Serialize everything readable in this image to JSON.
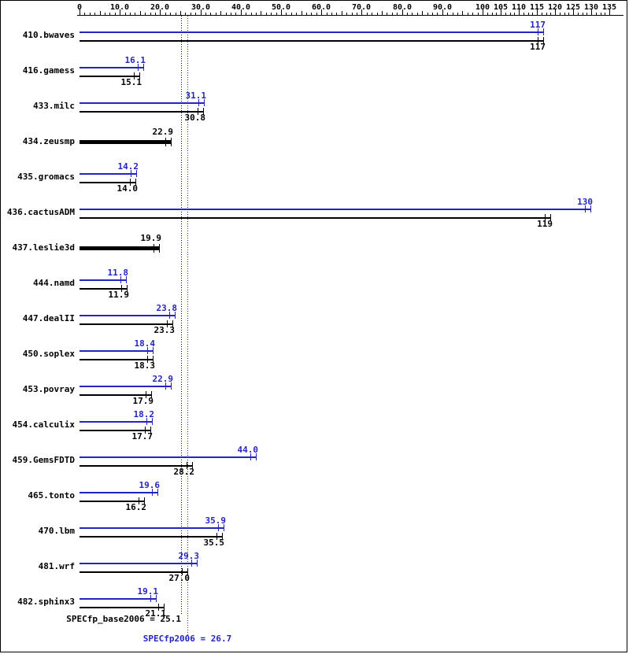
{
  "chart_data": {
    "type": "bar",
    "orientation": "horizontal",
    "axis": {
      "position": "top",
      "min": 0,
      "max": 135,
      "major_ticks": [
        {
          "v": 0,
          "label": "0"
        },
        {
          "v": 10,
          "label": "10.0"
        },
        {
          "v": 20,
          "label": "20.0"
        },
        {
          "v": 30,
          "label": "30.0"
        },
        {
          "v": 40,
          "label": "40.0"
        },
        {
          "v": 50,
          "label": "50.0"
        },
        {
          "v": 60,
          "label": "60.0"
        },
        {
          "v": 70,
          "label": "70.0"
        },
        {
          "v": 80,
          "label": "80.0"
        },
        {
          "v": 90,
          "label": "90.0"
        },
        {
          "v": 100,
          "label": "100"
        },
        {
          "v": 105,
          "label": "105"
        },
        {
          "v": 110,
          "label": "110"
        },
        {
          "v": 115,
          "label": "115"
        },
        {
          "v": 120,
          "label": "120"
        },
        {
          "v": 125,
          "label": "125"
        },
        {
          "v": 130,
          "label": "130"
        },
        {
          "v": 135,
          "label": "135"
        }
      ]
    },
    "series_names": {
      "peak": "SPECfp2006",
      "base": "SPECfp_base2006"
    },
    "colors": {
      "peak": "#2424c0",
      "base": "#000000"
    },
    "benchmarks": [
      {
        "name": "410.bwaves",
        "peak": 117,
        "peak_label": "117",
        "base": 117,
        "base_label": "117",
        "single": false
      },
      {
        "name": "416.gamess",
        "peak": 16.1,
        "peak_label": "16.1",
        "base": 15.1,
        "base_label": "15.1",
        "single": false
      },
      {
        "name": "433.milc",
        "peak": 31.1,
        "peak_label": "31.1",
        "base": 30.8,
        "base_label": "30.8",
        "single": false
      },
      {
        "name": "434.zeusmp",
        "base": 22.9,
        "base_label": "22.9",
        "single": true
      },
      {
        "name": "435.gromacs",
        "peak": 14.2,
        "peak_label": "14.2",
        "base": 14.0,
        "base_label": "14.0",
        "single": false
      },
      {
        "name": "436.cactusADM",
        "peak": 130,
        "peak_label": "130",
        "base": 119,
        "base_label": "119",
        "single": false
      },
      {
        "name": "437.leslie3d",
        "base": 19.9,
        "base_label": "19.9",
        "single": true
      },
      {
        "name": "444.namd",
        "peak": 11.8,
        "peak_label": "11.8",
        "base": 11.9,
        "base_label": "11.9",
        "single": false
      },
      {
        "name": "447.dealII",
        "peak": 23.8,
        "peak_label": "23.8",
        "base": 23.3,
        "base_label": "23.3",
        "single": false
      },
      {
        "name": "450.soplex",
        "peak": 18.4,
        "peak_label": "18.4",
        "base": 18.3,
        "base_label": "18.3",
        "single": false
      },
      {
        "name": "453.povray",
        "peak": 22.9,
        "peak_label": "22.9",
        "base": 17.9,
        "base_label": "17.9",
        "single": false
      },
      {
        "name": "454.calculix",
        "peak": 18.2,
        "peak_label": "18.2",
        "base": 17.7,
        "base_label": "17.7",
        "single": false
      },
      {
        "name": "459.GemsFDTD",
        "peak": 44.0,
        "peak_label": "44.0",
        "base": 28.2,
        "base_label": "28.2",
        "single": false
      },
      {
        "name": "465.tonto",
        "peak": 19.6,
        "peak_label": "19.6",
        "base": 16.2,
        "base_label": "16.2",
        "single": false
      },
      {
        "name": "470.lbm",
        "peak": 35.9,
        "peak_label": "35.9",
        "base": 35.5,
        "base_label": "35.5",
        "single": false
      },
      {
        "name": "481.wrf",
        "peak": 29.3,
        "peak_label": "29.3",
        "base": 27.0,
        "base_label": "27.0",
        "single": false
      },
      {
        "name": "482.sphinx3",
        "peak": 19.1,
        "peak_label": "19.1",
        "base": 21.1,
        "base_label": "21.1",
        "single": false
      }
    ],
    "means": {
      "base": 25.1,
      "peak": 26.7,
      "base_label": "SPECfp_base2006 = 25.1",
      "peak_label": "SPECfp2006 = 26.7"
    }
  }
}
